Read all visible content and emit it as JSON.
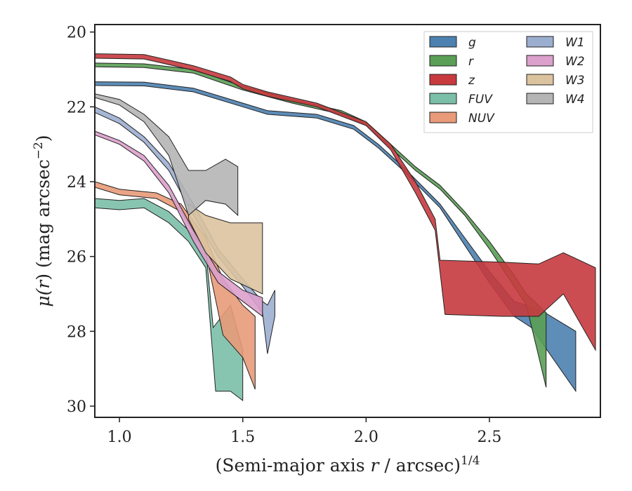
{
  "chart_data": {
    "type": "area",
    "title": "",
    "xlabel": "(Semi-major axis r / arcsec)",
    "xlabel_parts": {
      "pre": "(Semi-major axis ",
      "var": "r",
      "mid": " / arcsec)",
      "sup": "1/4"
    },
    "ylabel": "μ(r) (mag arcsec⁻²)",
    "ylabel_parts": {
      "mu": "μ(",
      "var": "r",
      "rest": ") (mag arcsec",
      "sup": "−2",
      "close": ")"
    },
    "xlim": [
      0.9,
      2.95
    ],
    "ylim": [
      30.3,
      19.8
    ],
    "y_inverted": true,
    "xticks": [
      1.0,
      1.5,
      2.0,
      2.5
    ],
    "xtick_labels": [
      "1.0",
      "1.5",
      "2.0",
      "2.5"
    ],
    "yticks": [
      20,
      22,
      24,
      26,
      28,
      30
    ],
    "ytick_labels": [
      "20",
      "22",
      "24",
      "26",
      "28",
      "30"
    ],
    "grid": false,
    "legend_position": "top-right",
    "legend_columns": 2,
    "series": [
      {
        "name": "g",
        "color": "#4c81b0",
        "upper": [
          [
            0.9,
            21.33
          ],
          [
            1.1,
            21.34
          ],
          [
            1.3,
            21.5
          ],
          [
            1.5,
            21.9
          ],
          [
            1.6,
            22.1
          ],
          [
            1.8,
            22.2
          ],
          [
            1.95,
            22.5
          ],
          [
            2.05,
            23.0
          ],
          [
            2.15,
            23.6
          ],
          [
            2.3,
            24.6
          ],
          [
            2.4,
            25.5
          ],
          [
            2.5,
            26.4
          ],
          [
            2.6,
            27.2
          ],
          [
            2.7,
            27.4
          ],
          [
            2.85,
            28.0
          ]
        ],
        "lower": [
          [
            0.9,
            21.43
          ],
          [
            1.1,
            21.44
          ],
          [
            1.3,
            21.6
          ],
          [
            1.5,
            22.0
          ],
          [
            1.6,
            22.2
          ],
          [
            1.8,
            22.3
          ],
          [
            1.95,
            22.6
          ],
          [
            2.05,
            23.1
          ],
          [
            2.15,
            23.7
          ],
          [
            2.3,
            24.7
          ],
          [
            2.4,
            25.7
          ],
          [
            2.5,
            26.7
          ],
          [
            2.6,
            27.6
          ],
          [
            2.67,
            27.9
          ],
          [
            2.85,
            29.6
          ]
        ]
      },
      {
        "name": "r",
        "color": "#5a9f55",
        "upper": [
          [
            0.9,
            20.83
          ],
          [
            1.1,
            20.85
          ],
          [
            1.3,
            21.0
          ],
          [
            1.5,
            21.45
          ],
          [
            1.7,
            21.8
          ],
          [
            1.9,
            22.1
          ],
          [
            2.0,
            22.4
          ],
          [
            2.1,
            23.0
          ],
          [
            2.2,
            23.6
          ],
          [
            2.3,
            24.1
          ],
          [
            2.4,
            24.8
          ],
          [
            2.5,
            25.6
          ],
          [
            2.6,
            26.5
          ],
          [
            2.65,
            27.0
          ],
          [
            2.73,
            27.5
          ]
        ],
        "lower": [
          [
            0.9,
            20.93
          ],
          [
            1.1,
            20.95
          ],
          [
            1.3,
            21.1
          ],
          [
            1.5,
            21.55
          ],
          [
            1.7,
            21.9
          ],
          [
            1.9,
            22.2
          ],
          [
            2.0,
            22.5
          ],
          [
            2.1,
            23.1
          ],
          [
            2.2,
            23.7
          ],
          [
            2.3,
            24.2
          ],
          [
            2.4,
            24.9
          ],
          [
            2.5,
            25.8
          ],
          [
            2.6,
            26.8
          ],
          [
            2.65,
            27.3
          ],
          [
            2.73,
            29.5
          ]
        ]
      },
      {
        "name": "z",
        "color": "#c73a3e",
        "upper": [
          [
            0.9,
            20.58
          ],
          [
            1.1,
            20.6
          ],
          [
            1.3,
            20.9
          ],
          [
            1.45,
            21.2
          ],
          [
            1.5,
            21.4
          ],
          [
            1.6,
            21.6
          ],
          [
            1.8,
            21.9
          ],
          [
            2.0,
            22.4
          ],
          [
            2.1,
            23.0
          ],
          [
            2.2,
            24.0
          ],
          [
            2.28,
            25.0
          ],
          [
            2.3,
            26.1
          ],
          [
            2.55,
            26.15
          ],
          [
            2.7,
            26.2
          ],
          [
            2.8,
            25.9
          ],
          [
            2.93,
            26.3
          ]
        ],
        "lower": [
          [
            0.9,
            20.7
          ],
          [
            1.1,
            20.72
          ],
          [
            1.3,
            21.02
          ],
          [
            1.45,
            21.32
          ],
          [
            1.5,
            21.52
          ],
          [
            1.6,
            21.72
          ],
          [
            1.8,
            22.0
          ],
          [
            2.0,
            22.5
          ],
          [
            2.1,
            23.15
          ],
          [
            2.2,
            24.3
          ],
          [
            2.28,
            25.3
          ],
          [
            2.32,
            27.55
          ],
          [
            2.55,
            27.6
          ],
          [
            2.7,
            27.6
          ],
          [
            2.8,
            27.0
          ],
          [
            2.93,
            28.5
          ]
        ]
      },
      {
        "name": "FUV",
        "color": "#7bbfa9",
        "upper": [
          [
            0.9,
            24.45
          ],
          [
            1.0,
            24.5
          ],
          [
            1.1,
            24.45
          ],
          [
            1.2,
            24.8
          ],
          [
            1.28,
            25.3
          ],
          [
            1.35,
            25.8
          ],
          [
            1.38,
            27.9
          ],
          [
            1.45,
            27.3
          ],
          [
            1.5,
            28.5
          ]
        ],
        "lower": [
          [
            0.9,
            24.7
          ],
          [
            1.0,
            24.75
          ],
          [
            1.1,
            24.7
          ],
          [
            1.2,
            25.1
          ],
          [
            1.28,
            25.6
          ],
          [
            1.35,
            26.3
          ],
          [
            1.39,
            29.6
          ],
          [
            1.45,
            29.6
          ],
          [
            1.5,
            29.85
          ]
        ]
      },
      {
        "name": "NUV",
        "color": "#e89a79",
        "upper": [
          [
            0.9,
            24.0
          ],
          [
            1.0,
            24.2
          ],
          [
            1.15,
            24.3
          ],
          [
            1.25,
            24.6
          ],
          [
            1.35,
            25.5
          ],
          [
            1.42,
            26.6
          ],
          [
            1.5,
            27.3
          ],
          [
            1.55,
            27.6
          ]
        ],
        "lower": [
          [
            0.9,
            24.15
          ],
          [
            1.0,
            24.35
          ],
          [
            1.15,
            24.45
          ],
          [
            1.25,
            24.8
          ],
          [
            1.35,
            25.9
          ],
          [
            1.42,
            28.1
          ],
          [
            1.5,
            28.7
          ],
          [
            1.55,
            29.55
          ]
        ]
      },
      {
        "name": "W1",
        "color": "#9caed0",
        "upper": [
          [
            0.9,
            22.0
          ],
          [
            1.0,
            22.3
          ],
          [
            1.1,
            22.8
          ],
          [
            1.2,
            23.5
          ],
          [
            1.3,
            24.6
          ],
          [
            1.4,
            25.8
          ],
          [
            1.5,
            26.6
          ],
          [
            1.58,
            27.2
          ],
          [
            1.6,
            27.3
          ],
          [
            1.63,
            26.9
          ]
        ],
        "lower": [
          [
            0.9,
            22.15
          ],
          [
            1.0,
            22.45
          ],
          [
            1.1,
            22.95
          ],
          [
            1.2,
            23.7
          ],
          [
            1.3,
            24.9
          ],
          [
            1.4,
            26.0
          ],
          [
            1.5,
            26.8
          ],
          [
            1.58,
            27.5
          ],
          [
            1.6,
            28.6
          ],
          [
            1.63,
            27.6
          ]
        ]
      },
      {
        "name": "W2",
        "color": "#dca0cc",
        "upper": [
          [
            0.9,
            22.65
          ],
          [
            1.0,
            22.9
          ],
          [
            1.1,
            23.3
          ],
          [
            1.2,
            24.1
          ],
          [
            1.3,
            25.3
          ],
          [
            1.4,
            26.4
          ],
          [
            1.5,
            26.9
          ],
          [
            1.58,
            27.1
          ]
        ],
        "lower": [
          [
            0.9,
            22.75
          ],
          [
            1.0,
            23.0
          ],
          [
            1.1,
            23.45
          ],
          [
            1.2,
            24.3
          ],
          [
            1.3,
            25.6
          ],
          [
            1.4,
            26.7
          ],
          [
            1.5,
            27.2
          ],
          [
            1.58,
            27.6
          ]
        ]
      },
      {
        "name": "W3",
        "color": "#dcc39f",
        "upper": [
          [
            1.28,
            24.6
          ],
          [
            1.35,
            24.9
          ],
          [
            1.45,
            25.1
          ],
          [
            1.58,
            25.1
          ]
        ],
        "lower": [
          [
            1.28,
            25.0
          ],
          [
            1.35,
            25.9
          ],
          [
            1.45,
            26.6
          ],
          [
            1.58,
            27.0
          ]
        ]
      },
      {
        "name": "W4",
        "color": "#b5b5b5",
        "upper": [
          [
            0.9,
            21.65
          ],
          [
            1.0,
            21.8
          ],
          [
            1.1,
            22.2
          ],
          [
            1.2,
            22.8
          ],
          [
            1.28,
            23.7
          ],
          [
            1.35,
            23.7
          ],
          [
            1.43,
            23.4
          ],
          [
            1.48,
            23.6
          ]
        ],
        "lower": [
          [
            0.9,
            21.75
          ],
          [
            1.0,
            21.95
          ],
          [
            1.1,
            22.4
          ],
          [
            1.2,
            23.3
          ],
          [
            1.28,
            24.9
          ],
          [
            1.35,
            24.5
          ],
          [
            1.43,
            24.6
          ],
          [
            1.48,
            24.9
          ]
        ]
      }
    ]
  }
}
